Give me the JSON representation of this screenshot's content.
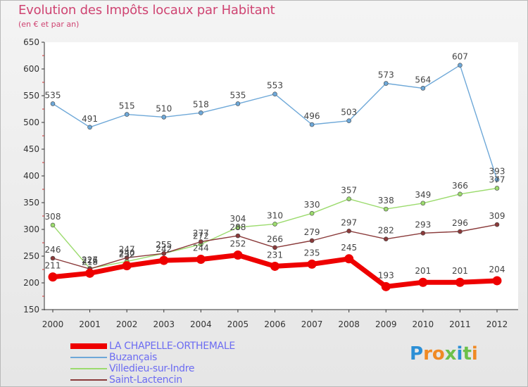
{
  "title": "Evolution des Impôts locaux par Habitant",
  "subtitle": "(en € et par an)",
  "logo": {
    "letters": [
      {
        "ch": "P",
        "color": "#2b8fd6"
      },
      {
        "ch": "r",
        "color": "#f08a24"
      },
      {
        "ch": "o",
        "color": "#f08a24"
      },
      {
        "ch": "x",
        "color": "#6cc04a"
      },
      {
        "ch": "i",
        "color": "#2b8fd6"
      },
      {
        "ch": "t",
        "color": "#6cc04a"
      },
      {
        "ch": "i",
        "color": "#f08a24"
      }
    ]
  },
  "chart_data": {
    "type": "line",
    "title": "Evolution des Impôts locaux par Habitant",
    "subtitle": "(en € et par an)",
    "xlabel": "",
    "ylabel": "",
    "x": [
      "2000",
      "2001",
      "2002",
      "2003",
      "2004",
      "2005",
      "2006",
      "2007",
      "2008",
      "2009",
      "2010",
      "2011",
      "2012"
    ],
    "ylim": [
      150,
      650
    ],
    "yticks": [
      150,
      200,
      250,
      300,
      350,
      400,
      450,
      500,
      550,
      600,
      650
    ],
    "grid": false,
    "legend_position": "bottom-left",
    "series": [
      {
        "name": "LA CHAPELLE-ORTHEMALE",
        "color": "#ee0000",
        "values": [
          211,
          218,
          232,
          242,
          244,
          252,
          231,
          235,
          245,
          193,
          201,
          201,
          204
        ],
        "labels": [
          "211",
          "218",
          "232",
          "242",
          "244",
          "252",
          "231",
          "235",
          "245",
          "193",
          "201",
          "201",
          "204"
        ],
        "thick": true
      },
      {
        "name": "Buzançais",
        "color": "#6ea8d8",
        "values": [
          535,
          491,
          515,
          510,
          518,
          535,
          553,
          496,
          503,
          573,
          564,
          607,
          393
        ],
        "labels": [
          "535",
          "491",
          "515",
          "510",
          "518",
          "535",
          "553",
          "496",
          "503",
          "573",
          "564",
          "607",
          "393"
        ],
        "thick": false
      },
      {
        "name": "Villedieu-sur-Indre",
        "color": "#9cdb6e",
        "values": [
          308,
          227,
          240,
          255,
          272,
          304,
          310,
          330,
          357,
          338,
          349,
          366,
          377
        ],
        "labels": [
          "308",
          "227",
          "240",
          "255",
          "272",
          "304",
          "310",
          "330",
          "357",
          "338",
          "349",
          "366",
          "377"
        ],
        "thick": false
      },
      {
        "name": "Saint-Lactencin",
        "color": "#8a3a3a",
        "values": [
          246,
          226,
          247,
          255,
          277,
          288,
          266,
          279,
          297,
          282,
          293,
          296,
          309
        ],
        "labels": [
          "246",
          "226",
          "247",
          "255",
          "277",
          "288",
          "266",
          "279",
          "297",
          "282",
          "293",
          "296",
          "309"
        ],
        "thick": false
      }
    ]
  }
}
